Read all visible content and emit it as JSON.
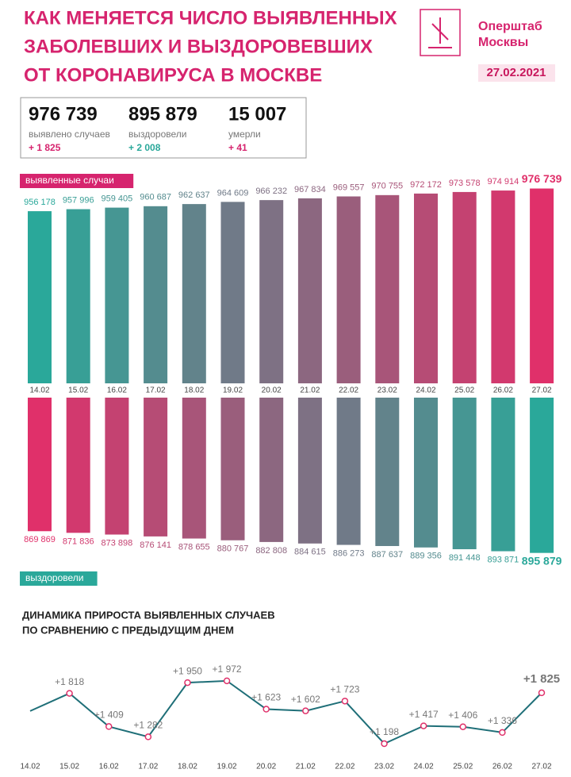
{
  "header": {
    "title": [
      "КАК МЕНЯЕТСЯ ЧИСЛО ВЫЯВЛЕННЫХ",
      "ЗАБОЛЕВШИХ И ВЫЗДОРОВЕВШИХ",
      "ОТ КОРОНАВИРУСА В МОСКВЕ"
    ],
    "brand": [
      "Оперштаб",
      "Москвы"
    ],
    "date": "27.02.2021"
  },
  "summary": [
    {
      "value": "976 739",
      "label": "выявлено случаев",
      "delta": "+ 1 825"
    },
    {
      "value": "895 879",
      "label": "выздоровели",
      "delta": "+ 2 008"
    },
    {
      "value": "15 007",
      "label": "умерли",
      "delta": "+ 41"
    }
  ],
  "chart_data": [
    {
      "type": "bar",
      "label": "выявленные случаи",
      "label_color": "#d6246e",
      "color_start": "#2aa89a",
      "color_end": "#e0306a",
      "categories": [
        "14.02",
        "15.02",
        "16.02",
        "17.02",
        "18.02",
        "19.02",
        "20.02",
        "21.02",
        "22.02",
        "23.02",
        "24.02",
        "25.02",
        "26.02",
        "27.02"
      ],
      "values": [
        956178,
        957996,
        959405,
        960687,
        962637,
        964609,
        966232,
        967834,
        969557,
        970755,
        972172,
        973578,
        974914,
        976739
      ],
      "value_labels": [
        "956 178",
        "957 996",
        "959 405",
        "960 687",
        "962 637",
        "964 609",
        "966 232",
        "967 834",
        "969 557",
        "970 755",
        "972 172",
        "973 578",
        "974 914",
        "976 739"
      ],
      "ylim": [
        800000,
        980000
      ]
    },
    {
      "type": "bar",
      "label": "выздоровели",
      "label_color": "#2aa89a",
      "color_start": "#e0306a",
      "color_end": "#2aa89a",
      "values": [
        869869,
        871836,
        873898,
        876141,
        878655,
        880767,
        882808,
        884615,
        886273,
        887637,
        889356,
        891448,
        893871,
        895879
      ],
      "value_labels": [
        "869 869",
        "871 836",
        "873 898",
        "876 141",
        "878 655",
        "880 767",
        "882 808",
        "884 615",
        "886 273",
        "887 637",
        "889 356",
        "891 448",
        "893 871",
        "895 879"
      ],
      "ylim": [
        710000,
        900000
      ]
    },
    {
      "type": "line",
      "title": [
        "ДИНАМИКА ПРИРОСТА ВЫЯВЛЕННЫХ СЛУЧАЕВ",
        "ПО СРАВНЕНИЮ С ПРЕДЫДУЩИМ ДНЕМ"
      ],
      "color": "#1f6f78",
      "marker_color": "#e0306a",
      "categories": [
        "14.02",
        "15.02",
        "16.02",
        "17.02",
        "18.02",
        "19.02",
        "20.02",
        "21.02",
        "22.02",
        "23.02",
        "24.02",
        "25.02",
        "26.02",
        "27.02"
      ],
      "values": [
        1600,
        1818,
        1409,
        1282,
        1950,
        1972,
        1623,
        1602,
        1723,
        1198,
        1417,
        1406,
        1336,
        1825
      ],
      "value_labels": [
        null,
        "+1 818",
        "+1 409",
        "+1 282",
        "+1 950",
        "+1 972",
        "+1 623",
        "+1 602",
        "+1 723",
        "+1 198",
        "+1 417",
        "+1 406",
        "+1 336",
        "+1 825"
      ],
      "ylim": [
        1100,
        2000
      ]
    }
  ]
}
